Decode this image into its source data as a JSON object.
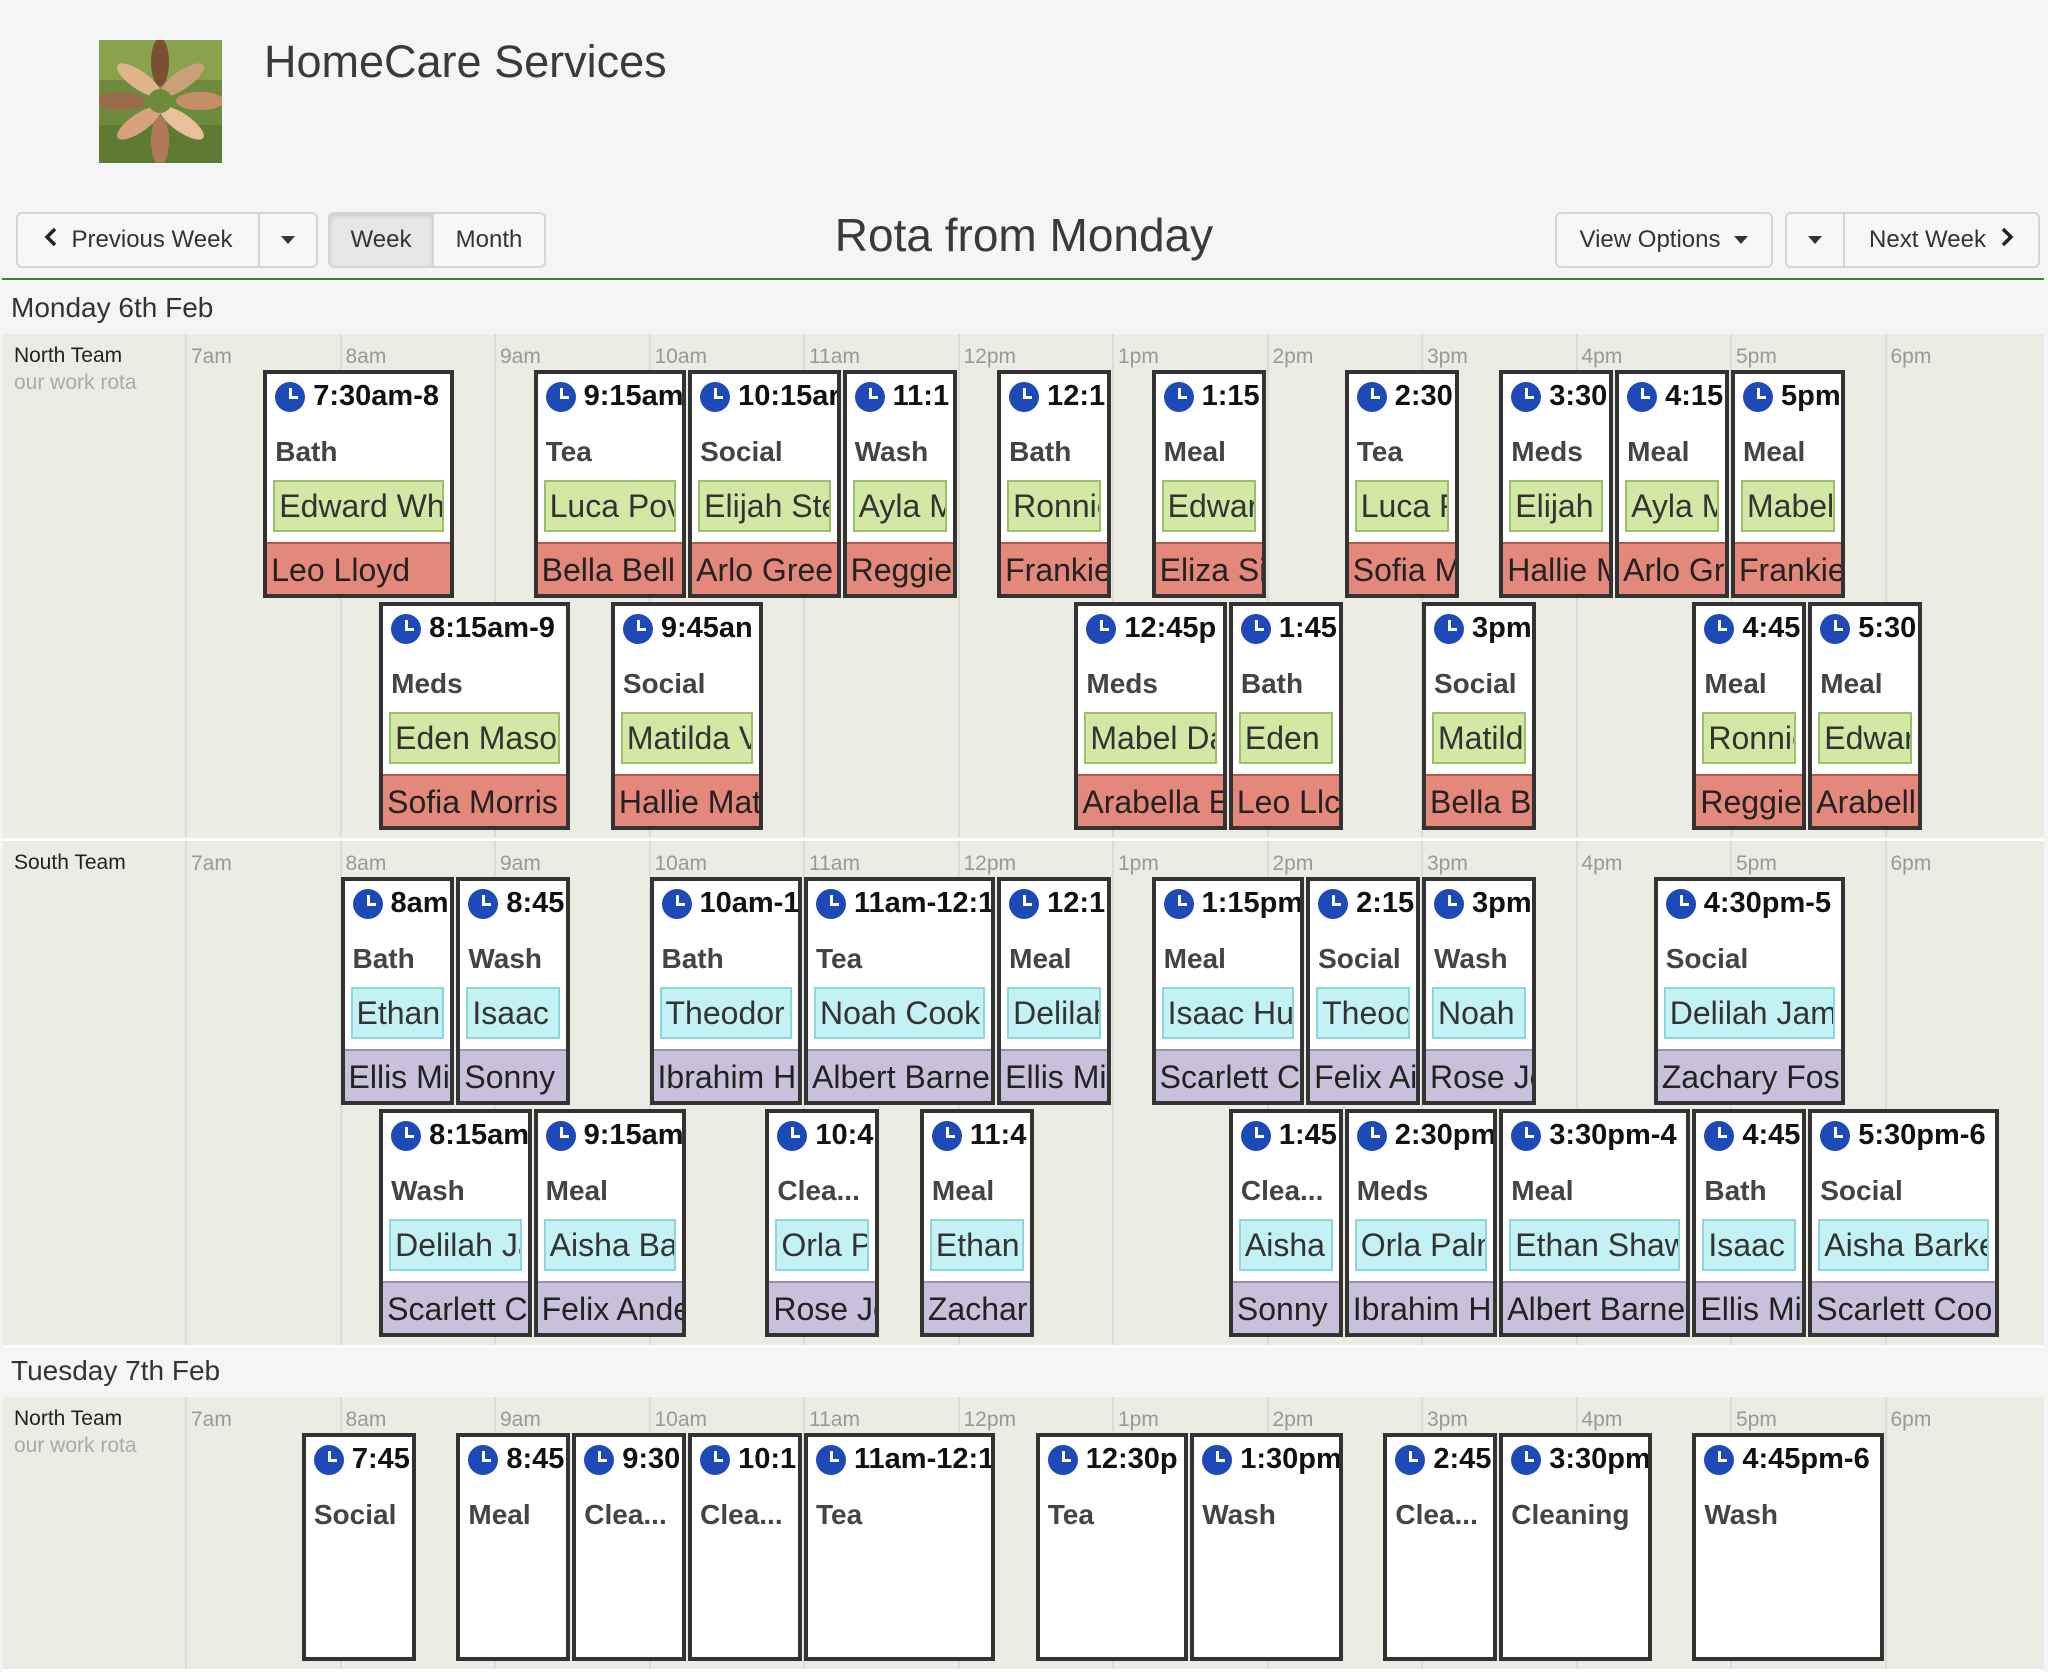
{
  "app": {
    "title": "HomeCare Services",
    "logo": "hands-circle-photo"
  },
  "toolbar": {
    "previous_week": "Previous Week",
    "week": "Week",
    "month": "Month",
    "rota_title": "Rota from Monday",
    "view_options": "View Options",
    "next_week": "Next Week"
  },
  "hours": [
    "7am",
    "8am",
    "9am",
    "10am",
    "11am",
    "12pm",
    "1pm",
    "2pm",
    "3pm",
    "4pm",
    "5pm",
    "6pm"
  ],
  "days": [
    {
      "label": "Monday 6th Feb",
      "teams": [
        {
          "name": "North Team",
          "subtitle": "our work rota",
          "style": "north",
          "rows": [
            [
              {
                "time": "7:30am-8",
                "service": "Bath",
                "client": "Edward Wh",
                "worker": "Leo Lloyd",
                "start": 7.5,
                "end": 8.75
              },
              {
                "time": "9:15am",
                "service": "Tea",
                "client": "Luca Pov",
                "worker": "Bella Bell",
                "start": 9.25,
                "end": 10.25
              },
              {
                "time": "10:15ar",
                "service": "Social",
                "client": "Elijah Ste",
                "worker": "Arlo Gree",
                "start": 10.25,
                "end": 11.25
              },
              {
                "time": "11:1",
                "service": "Wash",
                "client": "Ayla M",
                "worker": "Reggie",
                "start": 11.25,
                "end": 12.0
              },
              {
                "time": "12:1",
                "service": "Bath",
                "client": "Ronnie",
                "worker": "Frankie",
                "start": 12.25,
                "end": 13.0
              },
              {
                "time": "1:15",
                "service": "Meal",
                "client": "Edwar",
                "worker": "Eliza Si",
                "start": 13.25,
                "end": 14.0
              },
              {
                "time": "2:30",
                "service": "Tea",
                "client": "Luca F",
                "worker": "Sofia M",
                "start": 14.5,
                "end": 15.25
              },
              {
                "time": "3:30",
                "service": "Meds",
                "client": "Elijah",
                "worker": "Hallie M",
                "start": 15.5,
                "end": 16.25
              },
              {
                "time": "4:15",
                "service": "Meal",
                "client": "Ayla M",
                "worker": "Arlo Gr",
                "start": 16.25,
                "end": 17.0
              },
              {
                "time": "5pm",
                "service": "Meal",
                "client": "Mabel",
                "worker": "Frankie",
                "start": 17.0,
                "end": 17.75
              }
            ],
            [
              {
                "time": "8:15am-9",
                "service": "Meds",
                "client": "Eden Maso",
                "worker": "Sofia Morris",
                "start": 8.25,
                "end": 9.5
              },
              {
                "time": "9:45an",
                "service": "Social",
                "client": "Matilda V",
                "worker": "Hallie Mat",
                "start": 9.75,
                "end": 10.75
              },
              {
                "time": "12:45p",
                "service": "Meds",
                "client": "Mabel Da",
                "worker": "Arabella E",
                "start": 12.75,
                "end": 13.75
              },
              {
                "time": "1:45",
                "service": "Bath",
                "client": "Eden I",
                "worker": "Leo Llc",
                "start": 13.75,
                "end": 14.5
              },
              {
                "time": "3pm",
                "service": "Social",
                "client": "Matild",
                "worker": "Bella B",
                "start": 15.0,
                "end": 15.75
              },
              {
                "time": "4:45",
                "service": "Meal",
                "client": "Ronnie",
                "worker": "Reggie",
                "start": 16.75,
                "end": 17.5
              },
              {
                "time": "5:30",
                "service": "Meal",
                "client": "Edwar",
                "worker": "Arabell",
                "start": 17.5,
                "end": 18.25
              }
            ]
          ]
        },
        {
          "name": "South Team",
          "subtitle": "",
          "style": "south",
          "rows": [
            [
              {
                "time": "8am",
                "service": "Bath",
                "client": "Ethan",
                "worker": "Ellis Mi",
                "start": 8.0,
                "end": 8.75
              },
              {
                "time": "8:45",
                "service": "Wash",
                "client": "Isaac I",
                "worker": "Sonny",
                "start": 8.75,
                "end": 9.5
              },
              {
                "time": "10am-1",
                "service": "Bath",
                "client": "Theodor",
                "worker": "Ibrahim H",
                "start": 10.0,
                "end": 11.0
              },
              {
                "time": "11am-12:1",
                "service": "Tea",
                "client": "Noah Cook",
                "worker": "Albert Barne",
                "start": 11.0,
                "end": 12.25
              },
              {
                "time": "12:1",
                "service": "Meal",
                "client": "Delilah",
                "worker": "Ellis Mi",
                "start": 12.25,
                "end": 13.0
              },
              {
                "time": "1:15pm",
                "service": "Meal",
                "client": "Isaac Hu",
                "worker": "Scarlett C",
                "start": 13.25,
                "end": 14.25
              },
              {
                "time": "2:15",
                "service": "Social",
                "client": "Theod",
                "worker": "Felix Ai",
                "start": 14.25,
                "end": 15.0
              },
              {
                "time": "3pm",
                "service": "Wash",
                "client": "Noah",
                "worker": "Rose Jo",
                "start": 15.0,
                "end": 15.75
              },
              {
                "time": "4:30pm-5",
                "service": "Social",
                "client": "Delilah Jam",
                "worker": "Zachary Fos",
                "start": 16.5,
                "end": 17.75
              }
            ],
            [
              {
                "time": "8:15am",
                "service": "Wash",
                "client": "Delilah Ja",
                "worker": "Scarlett C",
                "start": 8.25,
                "end": 9.25
              },
              {
                "time": "9:15am",
                "service": "Meal",
                "client": "Aisha Ba",
                "worker": "Felix Ande",
                "start": 9.25,
                "end": 10.25
              },
              {
                "time": "10:4",
                "service": "Clea...",
                "client": "Orla P",
                "worker": "Rose Jo",
                "start": 10.75,
                "end": 11.5
              },
              {
                "time": "11:4",
                "service": "Meal",
                "client": "Ethan",
                "worker": "Zachar",
                "start": 11.75,
                "end": 12.5
              },
              {
                "time": "1:45",
                "service": "Clea...",
                "client": "Aisha",
                "worker": "Sonny",
                "start": 13.75,
                "end": 14.5
              },
              {
                "time": "2:30pm",
                "service": "Meds",
                "client": "Orla Paln",
                "worker": "Ibrahim H",
                "start": 14.5,
                "end": 15.5
              },
              {
                "time": "3:30pm-4",
                "service": "Meal",
                "client": "Ethan Shaw",
                "worker": "Albert Barne",
                "start": 15.5,
                "end": 16.75
              },
              {
                "time": "4:45",
                "service": "Bath",
                "client": "Isaac I",
                "worker": "Ellis Mi",
                "start": 16.75,
                "end": 17.5
              },
              {
                "time": "5:30pm-6",
                "service": "Social",
                "client": "Aisha Barke",
                "worker": "Scarlett Coo",
                "start": 17.5,
                "end": 18.75
              }
            ]
          ]
        }
      ]
    },
    {
      "label": "Tuesday 7th Feb",
      "teams": [
        {
          "name": "North Team",
          "subtitle": "our work rota",
          "style": "north",
          "rows": [
            [
              {
                "time": "7:45",
                "service": "Social",
                "client": "",
                "worker": "",
                "start": 7.75,
                "end": 8.5
              },
              {
                "time": "8:45",
                "service": "Meal",
                "client": "",
                "worker": "",
                "start": 8.75,
                "end": 9.5
              },
              {
                "time": "9:30",
                "service": "Clea...",
                "client": "",
                "worker": "",
                "start": 9.5,
                "end": 10.25
              },
              {
                "time": "10:1",
                "service": "Clea...",
                "client": "",
                "worker": "",
                "start": 10.25,
                "end": 11.0
              },
              {
                "time": "11am-12:1",
                "service": "Tea",
                "client": "",
                "worker": "",
                "start": 11.0,
                "end": 12.25
              },
              {
                "time": "12:30p",
                "service": "Tea",
                "client": "",
                "worker": "",
                "start": 12.5,
                "end": 13.5
              },
              {
                "time": "1:30pm",
                "service": "Wash",
                "client": "",
                "worker": "",
                "start": 13.5,
                "end": 14.5
              },
              {
                "time": "2:45",
                "service": "Clea...",
                "client": "",
                "worker": "",
                "start": 14.75,
                "end": 15.5
              },
              {
                "time": "3:30pm",
                "service": "Cleaning",
                "client": "",
                "worker": "",
                "start": 15.5,
                "end": 16.5
              },
              {
                "time": "4:45pm-6",
                "service": "Wash",
                "client": "",
                "worker": "",
                "start": 16.75,
                "end": 18.0
              }
            ]
          ]
        }
      ]
    }
  ]
}
